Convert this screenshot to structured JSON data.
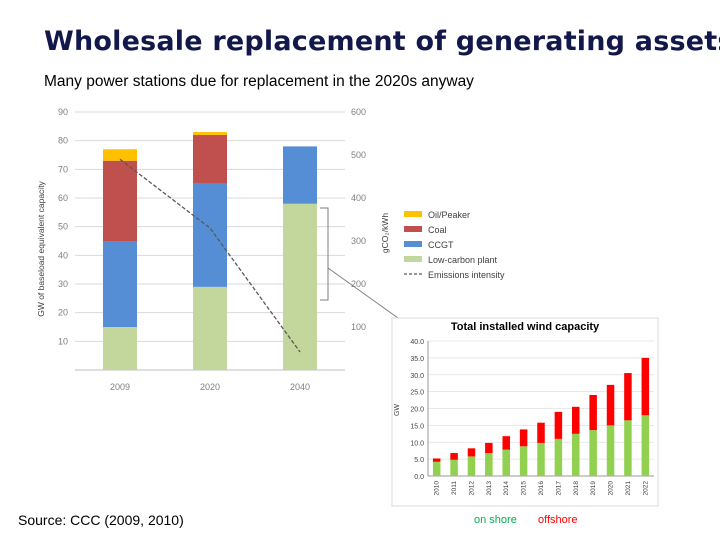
{
  "slide": {
    "title": "Wholesale replacement of generating assets",
    "subtitle": "Many power stations due for replacement in the 2020s anyway",
    "source": "Source: CCC (2009, 2010)",
    "on_shore_label": "on shore",
    "offshore_label": "offshore"
  },
  "chart_data": [
    {
      "type": "bar",
      "stacked": true,
      "title": "",
      "categories": [
        "2009",
        "2020",
        "2040"
      ],
      "ylabel": "GW of baseload equivalent capacity",
      "y2label": "gCO₂/kWh",
      "ylim": [
        0,
        90
      ],
      "y2lim": [
        0,
        600
      ],
      "yticks": [
        10,
        20,
        30,
        40,
        50,
        60,
        70,
        80,
        90
      ],
      "y2ticks": [
        100,
        200,
        300,
        400,
        500,
        600
      ],
      "series": [
        {
          "name": "Low-carbon plant",
          "color": "#c3d69b",
          "values": [
            15,
            29,
            58
          ]
        },
        {
          "name": "CCGT",
          "color": "#558ed5",
          "values": [
            30,
            36,
            20
          ]
        },
        {
          "name": "Coal",
          "color": "#c0504d",
          "values": [
            28,
            17,
            0
          ]
        },
        {
          "name": "Oil/Peaker",
          "color": "#ffc000",
          "values": [
            4,
            1,
            0
          ]
        }
      ],
      "line_series": {
        "name": "Emissions intensity",
        "color": "#595959",
        "values": [
          490,
          330,
          42
        ]
      },
      "legend_order": [
        "Oil/Peaker",
        "Coal",
        "CCGT",
        "Low-carbon plant",
        "Emissions intensity"
      ]
    },
    {
      "type": "bar",
      "stacked": true,
      "title": "Total installed wind capacity",
      "ylabel": "GW",
      "ylim": [
        0,
        40
      ],
      "yticks": [
        "0.0",
        "5.0",
        "10.0",
        "15.0",
        "20.0",
        "25.0",
        "30.0",
        "35.0",
        "40.0"
      ],
      "categories": [
        "2010",
        "2011",
        "2012",
        "2013",
        "2014",
        "2015",
        "2016",
        "2017",
        "2018",
        "2019",
        "2020",
        "2021",
        "2022"
      ],
      "series": [
        {
          "name": "on shore",
          "color": "#92d050",
          "values": [
            4.2,
            4.8,
            5.8,
            6.8,
            7.8,
            8.8,
            9.8,
            11.0,
            12.5,
            13.6,
            15.0,
            16.5,
            18.0
          ]
        },
        {
          "name": "offshore",
          "color": "#ff0000",
          "values": [
            1.0,
            2.0,
            2.4,
            3.0,
            4.0,
            5.0,
            6.0,
            8.0,
            8.0,
            10.4,
            12.0,
            14.0,
            17.0
          ]
        }
      ]
    }
  ]
}
